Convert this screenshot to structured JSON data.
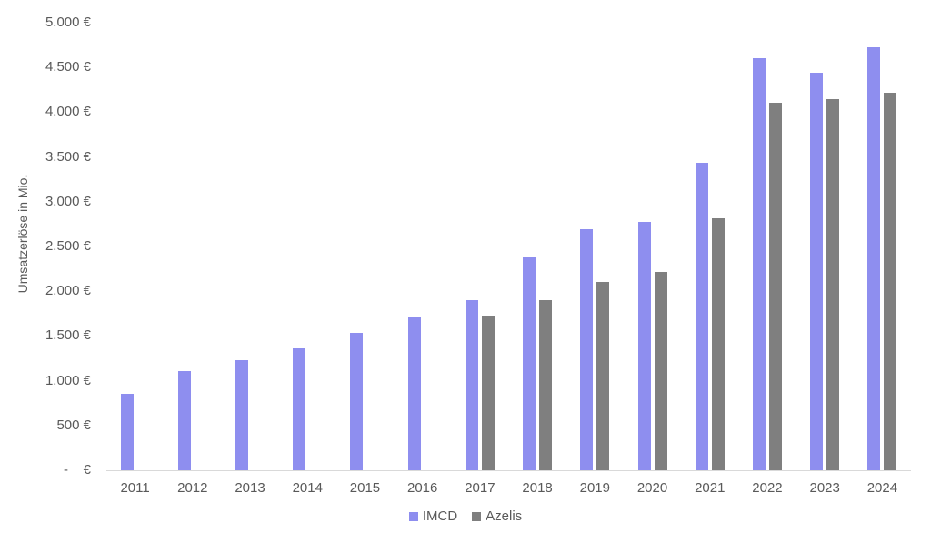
{
  "chart_data": {
    "type": "bar",
    "title": "",
    "xlabel": "",
    "ylabel": "Umsatzerlöse in Mio.",
    "categories": [
      "2011",
      "2012",
      "2013",
      "2014",
      "2015",
      "2016",
      "2017",
      "2018",
      "2019",
      "2020",
      "2021",
      "2022",
      "2023",
      "2024"
    ],
    "series": [
      {
        "name": "IMCD",
        "color": "#8e8eef",
        "values": [
          850,
          1110,
          1230,
          1360,
          1530,
          1710,
          1900,
          2380,
          2690,
          2770,
          3440,
          4600,
          4440,
          4730
        ]
      },
      {
        "name": "Azelis",
        "color": "#7f7f7f",
        "values": [
          null,
          null,
          null,
          null,
          null,
          null,
          1730,
          1900,
          2100,
          2220,
          2820,
          4110,
          4150,
          4220
        ]
      }
    ],
    "ylim": [
      0,
      5000
    ],
    "ytick_step": 500,
    "ytick_labels": [
      "-    €",
      "500 €",
      "1.000 €",
      "1.500 €",
      "2.000 €",
      "2.500 €",
      "3.000 €",
      "3.500 €",
      "4.000 €",
      "4.500 €",
      "5.000 €"
    ],
    "grid": false,
    "legend_position": "bottom",
    "axis_line_color": "#d9d9d9",
    "tick_label_color": "#595959"
  }
}
